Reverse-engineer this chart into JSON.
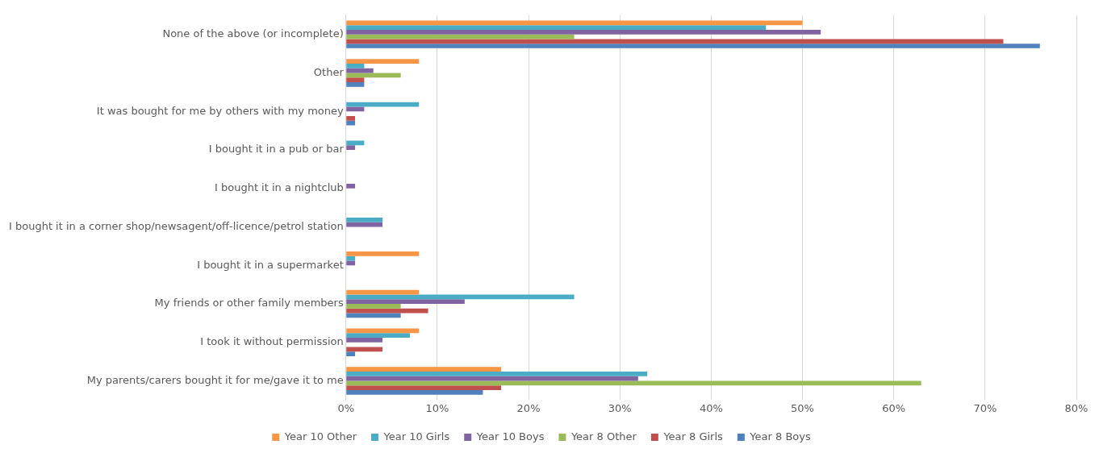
{
  "chart_data": {
    "type": "bar",
    "orientation": "horizontal",
    "categories": [
      "None of the above (or incomplete)",
      "Other",
      "It was bought for me by others with my money",
      "I bought it in a pub or bar",
      "I bought it in a nightclub",
      "I bought it in a corner shop/newsagent/off-licence/petrol station",
      "I bought it in a supermarket",
      "My friends or other family members",
      "I took it without permission",
      "My parents/carers bought it for me/gave it to me"
    ],
    "series": [
      {
        "name": "Year 10 Other",
        "color": "#f79646",
        "values": [
          50,
          8,
          0,
          0,
          0,
          0,
          8,
          8,
          8,
          17
        ]
      },
      {
        "name": "Year 10 Girls",
        "color": "#4bacc6",
        "values": [
          46,
          2,
          8,
          2,
          0,
          4,
          1,
          25,
          7,
          33
        ]
      },
      {
        "name": "Year 10 Boys",
        "color": "#8064a2",
        "values": [
          52,
          3,
          2,
          1,
          1,
          4,
          1,
          13,
          4,
          32
        ]
      },
      {
        "name": "Year 8 Other",
        "color": "#9bbb59",
        "values": [
          25,
          6,
          0,
          0,
          0,
          0,
          0,
          6,
          0,
          63
        ]
      },
      {
        "name": "Year 8 Girls",
        "color": "#c0504d",
        "values": [
          72,
          2,
          1,
          0,
          0,
          0,
          0,
          9,
          4,
          17
        ]
      },
      {
        "name": "Year 8 Boys",
        "color": "#4f81bd",
        "values": [
          76,
          2,
          1,
          0,
          0,
          0,
          0,
          6,
          1,
          15
        ]
      }
    ],
    "xlim": [
      0,
      80
    ],
    "xticks": [
      {
        "value": 0,
        "label": "0%"
      },
      {
        "value": 10,
        "label": "10%"
      },
      {
        "value": 20,
        "label": "20%"
      },
      {
        "value": 30,
        "label": "30%"
      },
      {
        "value": 40,
        "label": "40%"
      },
      {
        "value": 50,
        "label": "50%"
      },
      {
        "value": 60,
        "label": "60%"
      },
      {
        "value": 70,
        "label": "70%"
      },
      {
        "value": 80,
        "label": "80%"
      }
    ],
    "grid": "x",
    "legend": "bottom"
  }
}
